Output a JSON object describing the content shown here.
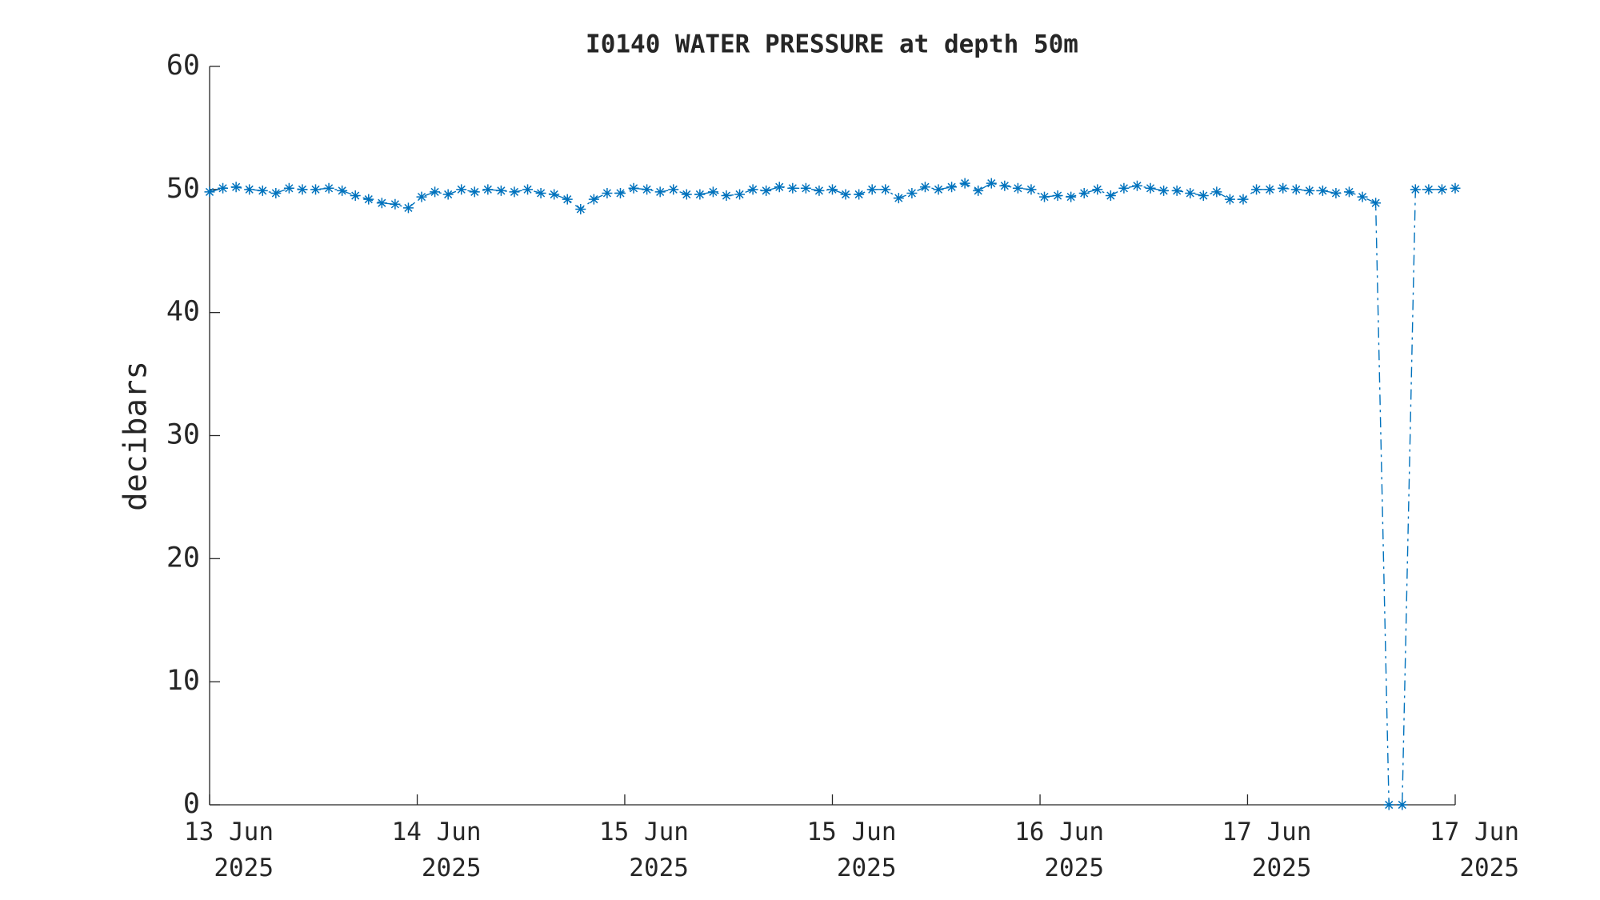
{
  "chart_data": {
    "type": "line",
    "title": "I0140 WATER PRESSURE at depth 50m",
    "ylabel": "decibars",
    "color": "#0072bd",
    "marker": "asterisk",
    "line_style": "dash-dot",
    "values": [
      49.8,
      50.1,
      50.2,
      50.0,
      49.9,
      49.7,
      50.1,
      50.0,
      50.0,
      50.1,
      49.9,
      49.5,
      49.2,
      48.9,
      48.8,
      48.5,
      49.4,
      49.8,
      49.6,
      50.0,
      49.8,
      50.0,
      49.9,
      49.8,
      50.0,
      49.7,
      49.6,
      49.2,
      48.4,
      49.2,
      49.7,
      49.7,
      50.1,
      50.0,
      49.8,
      50.0,
      49.6,
      49.6,
      49.8,
      49.5,
      49.6,
      50.0,
      49.9,
      50.2,
      50.1,
      50.1,
      49.9,
      50.0,
      49.6,
      49.6,
      50.0,
      50.0,
      49.3,
      49.7,
      50.2,
      50.0,
      50.2,
      50.5,
      49.9,
      50.5,
      50.3,
      50.1,
      50.0,
      49.4,
      49.5,
      49.4,
      49.7,
      50.0,
      49.5,
      50.1,
      50.3,
      50.1,
      49.9,
      49.9,
      49.7,
      49.5,
      49.8,
      49.2,
      49.2,
      50.0,
      50.0,
      50.1,
      50.0,
      49.9,
      49.9,
      49.7,
      49.8,
      49.4,
      48.9,
      0,
      0,
      50.0,
      50.0,
      50.0,
      50.1
    ],
    "xlim": [
      0,
      94
    ],
    "xticks": [
      {
        "value": 0,
        "label": "13 Jun\n2025"
      },
      {
        "value": 15.67,
        "label": "14 Jun\n2025"
      },
      {
        "value": 31.33,
        "label": "15 Jun\n2025"
      },
      {
        "value": 47,
        "label": "15 Jun\n2025"
      },
      {
        "value": 62.67,
        "label": "16 Jun\n2025"
      },
      {
        "value": 78.33,
        "label": "17 Jun\n2025"
      },
      {
        "value": 94,
        "label": "17 Jun\n2025"
      }
    ],
    "ylim": [
      0,
      60
    ],
    "yticks": [
      0,
      10,
      20,
      30,
      40,
      50,
      60
    ],
    "grid": false
  }
}
